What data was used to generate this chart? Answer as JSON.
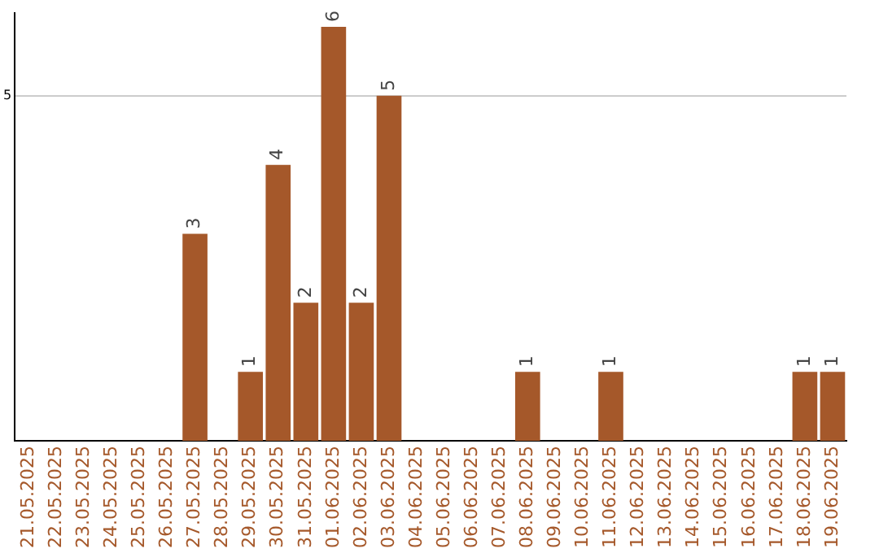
{
  "chart_data": {
    "type": "bar",
    "categories": [
      "21.05.2025",
      "22.05.2025",
      "23.05.2025",
      "24.05.2025",
      "25.05.2025",
      "26.05.2025",
      "27.05.2025",
      "28.05.2025",
      "29.05.2025",
      "30.05.2025",
      "31.05.2025",
      "01.06.2025",
      "02.06.2025",
      "03.06.2025",
      "04.06.2025",
      "05.06.2025",
      "06.06.2025",
      "07.06.2025",
      "08.06.2025",
      "09.06.2025",
      "10.06.2025",
      "11.06.2025",
      "12.06.2025",
      "13.06.2025",
      "14.06.2025",
      "15.06.2025",
      "16.06.2025",
      "17.06.2025",
      "18.06.2025",
      "19.06.2025"
    ],
    "values": [
      null,
      null,
      null,
      null,
      null,
      null,
      3,
      null,
      1,
      4,
      2,
      6,
      2,
      5,
      null,
      null,
      null,
      null,
      1,
      null,
      null,
      1,
      null,
      null,
      null,
      null,
      null,
      null,
      1,
      1
    ],
    "color": "#a5582a",
    "ylim": [
      0,
      6.2
    ],
    "yticks": [
      5
    ],
    "grid": "y",
    "data_labels": true,
    "legend": false
  }
}
